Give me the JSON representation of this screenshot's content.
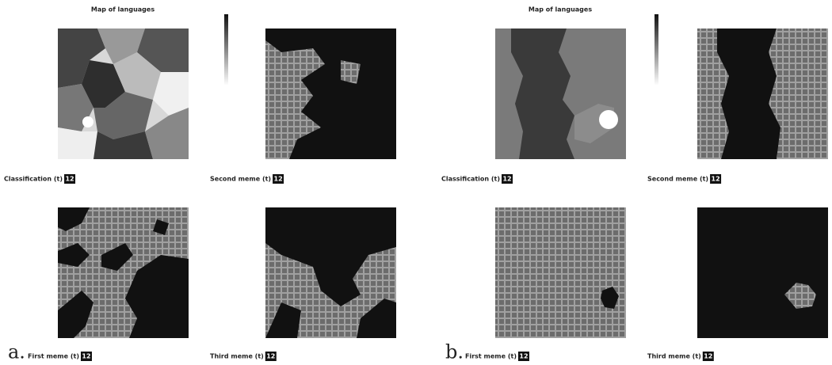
{
  "panels": [
    {
      "letter": "a.",
      "title": "Map of languages",
      "maps": [
        {
          "label": "Classification (t)",
          "badge": "12"
        },
        {
          "label": "Second meme (t)",
          "badge": "12"
        },
        {
          "label": "First meme (t)",
          "badge": "12"
        },
        {
          "label": "Third meme (t)",
          "badge": "12"
        }
      ]
    },
    {
      "letter": "b.",
      "title": "Map of languages",
      "maps": [
        {
          "label": "Classification (t)",
          "badge": "12"
        },
        {
          "label": "Second meme (t)",
          "badge": "12"
        },
        {
          "label": "First meme (t)",
          "badge": "12"
        },
        {
          "label": "Third meme (t)",
          "badge": "12"
        }
      ]
    }
  ]
}
